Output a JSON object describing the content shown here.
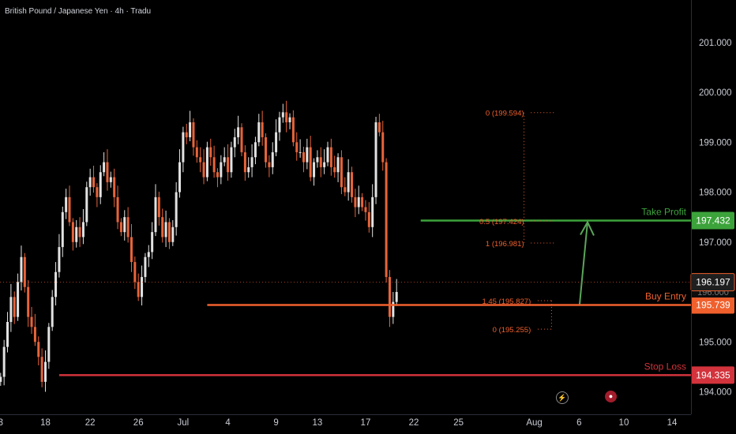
{
  "header": {
    "title": "British Pound / Japanese Yen · 4h · Tradu"
  },
  "colors": {
    "up": "#e2e2e2",
    "down": "#e8643a",
    "tp": "#3ca33b",
    "entry": "#f0602d",
    "sl": "#d3333c",
    "fib": "#f0602d",
    "grid": "#16181d",
    "axis_text": "#c9ccd4"
  },
  "chart_data": {
    "type": "candlestick",
    "title": "British Pound / Japanese Yen · 4h · Tradu",
    "ylim": [
      193.55,
      201.85
    ],
    "y_ticks": [
      {
        "value": 201.0,
        "label": "201.000"
      },
      {
        "value": 200.0,
        "label": "200.000"
      },
      {
        "value": 199.0,
        "label": "199.000"
      },
      {
        "value": 198.0,
        "label": "198.000"
      },
      {
        "value": 197.0,
        "label": "197.000"
      },
      {
        "value": 195.0,
        "label": "195.000"
      },
      {
        "value": 194.0,
        "label": "194.000"
      }
    ],
    "x_ticks": [
      {
        "label": "3",
        "bar": 0
      },
      {
        "label": "18",
        "bar": 13
      },
      {
        "label": "22",
        "bar": 26
      },
      {
        "label": "26",
        "bar": 40
      },
      {
        "label": "Jul",
        "bar": 53
      },
      {
        "label": "4",
        "bar": 66
      },
      {
        "label": "9",
        "bar": 80
      },
      {
        "label": "13",
        "bar": 92
      },
      {
        "label": "17",
        "bar": 106
      },
      {
        "label": "22",
        "bar": 120
      },
      {
        "label": "25",
        "bar": 133
      },
      {
        "label": "Aug",
        "bar": 155
      },
      {
        "label": "6",
        "bar": 168
      },
      {
        "label": "10",
        "bar": 181
      },
      {
        "label": "14",
        "bar": 195
      }
    ],
    "closes": [
      194.3,
      194.9,
      195.4,
      195.9,
      195.5,
      196.2,
      196.7,
      196.1,
      195.5,
      195.3,
      195.0,
      194.7,
      194.2,
      194.6,
      195.3,
      195.9,
      196.4,
      196.9,
      197.6,
      197.9,
      197.4,
      197.0,
      197.3,
      197.1,
      197.4,
      198.1,
      198.3,
      198.1,
      197.9,
      198.4,
      198.6,
      198.2,
      198.3,
      197.9,
      197.4,
      197.2,
      197.5,
      197.1,
      196.6,
      196.2,
      195.9,
      196.3,
      196.7,
      196.8,
      197.2,
      197.9,
      197.5,
      197.1,
      197.4,
      197.0,
      197.3,
      198.0,
      198.6,
      199.2,
      199.1,
      199.4,
      198.9,
      198.7,
      198.6,
      198.3,
      198.9,
      198.7,
      198.4,
      198.3,
      198.6,
      198.7,
      198.4,
      198.9,
      199.1,
      199.3,
      198.8,
      198.4,
      198.5,
      198.7,
      199.0,
      199.4,
      199.1,
      198.6,
      198.5,
      198.8,
      199.2,
      199.5,
      199.6,
      199.4,
      199.5,
      199.0,
      198.8,
      198.8,
      198.6,
      198.9,
      198.3,
      198.6,
      198.7,
      198.5,
      198.6,
      198.9,
      198.5,
      198.4,
      198.7,
      198.1,
      198.0,
      198.4,
      197.9,
      197.7,
      197.9,
      197.7,
      197.6,
      197.3,
      197.9,
      199.4,
      199.2,
      198.6,
      196.3,
      195.5,
      195.8,
      196.0
    ],
    "levels": {
      "take_profit": {
        "label": "Take Profit",
        "value": 197.432,
        "price_label": "197.432"
      },
      "buy_entry": {
        "label": "Buy Entry",
        "value": 195.739,
        "price_label": "195.739"
      },
      "stop_loss": {
        "label": "Stop Loss",
        "value": 194.335,
        "price_label": "194.335"
      },
      "current_price": {
        "value": 196.197,
        "price_label": "196.197"
      },
      "hidden_label": "196.000"
    },
    "fib_upper": [
      {
        "label": "0 (199.594)",
        "value": 199.594
      },
      {
        "label": "0.5 (197.424)",
        "value": 197.424
      },
      {
        "label": "1 (196.981)",
        "value": 196.981
      }
    ],
    "fib_lower": [
      {
        "label": "1.45 (195.827)",
        "value": 195.827
      },
      {
        "label": "0 (195.255)",
        "value": 195.255
      }
    ],
    "grid": false
  }
}
